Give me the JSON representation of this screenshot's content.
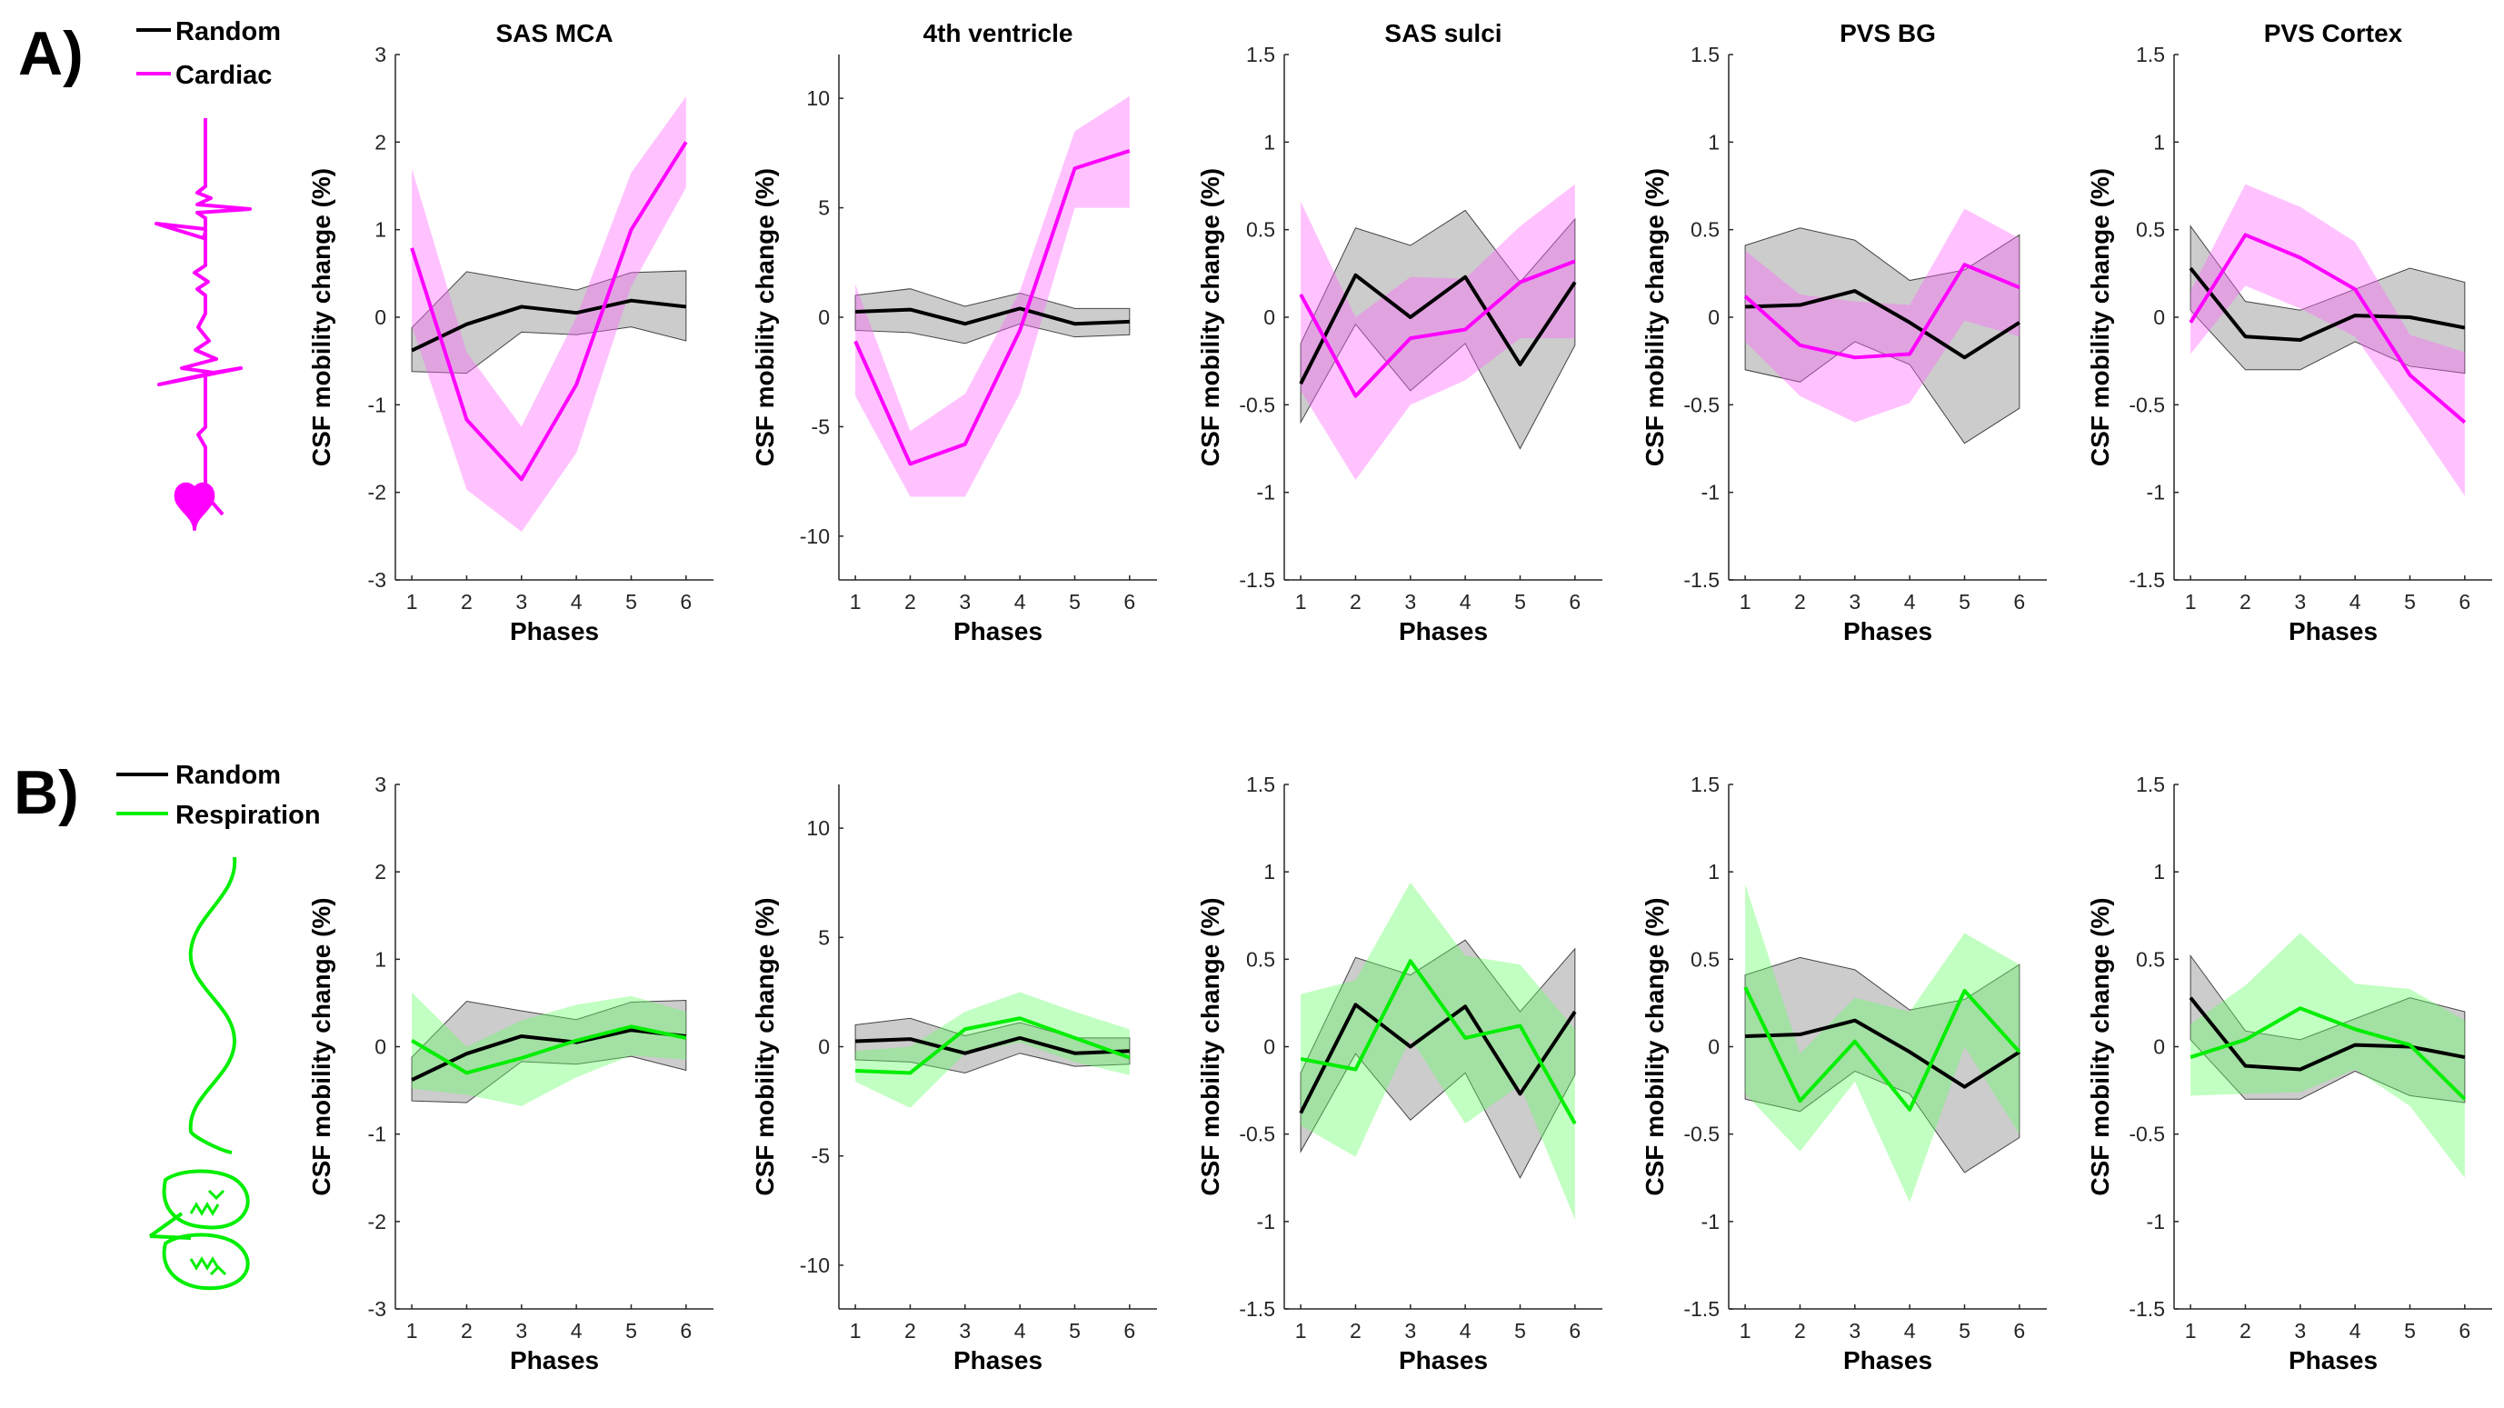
{
  "rows": [
    {
      "label": "A)",
      "legend": [
        {
          "name": "Random",
          "color": "#000000"
        },
        {
          "name": "Cardiac",
          "color": "#ff00ff"
        }
      ],
      "icon": "heartbeat-ecg-icon"
    },
    {
      "label": "B)",
      "legend": [
        {
          "name": "Random",
          "color": "#000000"
        },
        {
          "name": "Respiration",
          "color": "#00ee00"
        }
      ],
      "icon": "lungs-respiration-icon"
    }
  ],
  "chart_data": [
    {
      "type": "line",
      "row": 0,
      "title": "SAS MCA",
      "xlabel": "Phases",
      "ylabel": "CSF mobility change (%)",
      "x": [
        1,
        2,
        3,
        4,
        5,
        6
      ],
      "xlim": [
        0.7,
        6.5
      ],
      "ylim": [
        -3,
        3
      ],
      "yticks": [
        -3,
        -2,
        -1,
        0,
        1,
        2,
        3
      ],
      "series": [
        {
          "name": "Random",
          "color": "#000000",
          "values": [
            -0.38,
            -0.08,
            0.12,
            0.05,
            0.19,
            0.12
          ],
          "upper": [
            -0.12,
            0.52,
            0.41,
            0.31,
            0.51,
            0.53
          ],
          "lower": [
            -0.62,
            -0.64,
            -0.17,
            -0.2,
            -0.11,
            -0.27
          ]
        },
        {
          "name": "Cardiac",
          "color": "#ff00ff",
          "values": [
            0.79,
            -1.17,
            -1.85,
            -0.77,
            1.0,
            2.0
          ],
          "upper": [
            1.7,
            -0.4,
            -1.25,
            0.0,
            1.65,
            2.52
          ],
          "lower": [
            -0.1,
            -1.97,
            -2.45,
            -1.55,
            0.35,
            1.48
          ]
        }
      ]
    },
    {
      "type": "line",
      "row": 0,
      "title": "4th ventricle",
      "xlabel": "Phases",
      "ylabel": "CSF mobility change (%)",
      "x": [
        1,
        2,
        3,
        4,
        5,
        6
      ],
      "xlim": [
        0.7,
        6.5
      ],
      "ylim": [
        -12,
        12
      ],
      "yticks": [
        -10,
        -5,
        0,
        5,
        10
      ],
      "series": [
        {
          "name": "Random",
          "color": "#000000",
          "values": [
            0.25,
            0.35,
            -0.3,
            0.4,
            -0.3,
            -0.2
          ],
          "upper": [
            1.0,
            1.3,
            0.5,
            1.1,
            0.4,
            0.4
          ],
          "lower": [
            -0.6,
            -0.7,
            -1.2,
            -0.3,
            -0.9,
            -0.8
          ]
        },
        {
          "name": "Cardiac",
          "color": "#ff00ff",
          "values": [
            -1.1,
            -6.7,
            -5.8,
            -0.6,
            6.8,
            7.6
          ],
          "upper": [
            1.5,
            -5.2,
            -3.5,
            1.2,
            8.5,
            10.1
          ],
          "lower": [
            -3.6,
            -8.2,
            -8.2,
            -3.5,
            5.0,
            5.0
          ]
        }
      ]
    },
    {
      "type": "line",
      "row": 0,
      "title": "SAS sulci",
      "xlabel": "Phases",
      "ylabel": "CSF mobility change (%)",
      "x": [
        1,
        2,
        3,
        4,
        5,
        6
      ],
      "xlim": [
        0.7,
        6.5
      ],
      "ylim": [
        -1.5,
        1.5
      ],
      "yticks": [
        -1.5,
        -1,
        -0.5,
        0,
        0.5,
        1,
        1.5
      ],
      "series": [
        {
          "name": "Random",
          "color": "#000000",
          "values": [
            -0.38,
            0.24,
            0.0,
            0.23,
            -0.27,
            0.2
          ],
          "upper": [
            -0.15,
            0.51,
            0.41,
            0.61,
            0.2,
            0.56
          ],
          "lower": [
            -0.6,
            -0.04,
            -0.42,
            -0.15,
            -0.75,
            -0.16
          ]
        },
        {
          "name": "Cardiac",
          "color": "#ff00ff",
          "values": [
            0.13,
            -0.45,
            -0.12,
            -0.07,
            0.2,
            0.32
          ],
          "upper": [
            0.66,
            0.0,
            0.23,
            0.22,
            0.52,
            0.76
          ],
          "lower": [
            -0.42,
            -0.93,
            -0.5,
            -0.36,
            -0.12,
            -0.12
          ]
        }
      ]
    },
    {
      "type": "line",
      "row": 0,
      "title": "PVS BG",
      "xlabel": "Phases",
      "ylabel": "CSF mobility change (%)",
      "x": [
        1,
        2,
        3,
        4,
        5,
        6
      ],
      "xlim": [
        0.7,
        6.5
      ],
      "ylim": [
        -1.5,
        1.5
      ],
      "yticks": [
        -1.5,
        -1,
        -0.5,
        0,
        0.5,
        1,
        1.5
      ],
      "series": [
        {
          "name": "Random",
          "color": "#000000",
          "values": [
            0.06,
            0.07,
            0.15,
            -0.03,
            -0.23,
            -0.03
          ],
          "upper": [
            0.41,
            0.51,
            0.44,
            0.21,
            0.27,
            0.47
          ],
          "lower": [
            -0.3,
            -0.37,
            -0.14,
            -0.27,
            -0.72,
            -0.52
          ]
        },
        {
          "name": "Cardiac",
          "color": "#ff00ff",
          "values": [
            0.12,
            -0.16,
            -0.23,
            -0.21,
            0.3,
            0.17
          ],
          "upper": [
            0.38,
            0.13,
            0.09,
            0.07,
            0.62,
            0.45
          ],
          "lower": [
            -0.14,
            -0.45,
            -0.6,
            -0.49,
            -0.02,
            -0.11
          ]
        }
      ]
    },
    {
      "type": "line",
      "row": 0,
      "title": "PVS Cortex",
      "xlabel": "Phases",
      "ylabel": "CSF mobility change (%)",
      "x": [
        1,
        2,
        3,
        4,
        5,
        6
      ],
      "xlim": [
        0.7,
        6.5
      ],
      "ylim": [
        -1.5,
        1.5
      ],
      "yticks": [
        -1.5,
        -1,
        -0.5,
        0,
        0.5,
        1,
        1.5
      ],
      "series": [
        {
          "name": "Random",
          "color": "#000000",
          "values": [
            0.28,
            -0.11,
            -0.13,
            0.01,
            0.0,
            -0.06
          ],
          "upper": [
            0.52,
            0.09,
            0.04,
            0.16,
            0.28,
            0.2
          ],
          "lower": [
            0.04,
            -0.3,
            -0.3,
            -0.14,
            -0.28,
            -0.32
          ]
        },
        {
          "name": "Cardiac",
          "color": "#ff00ff",
          "values": [
            -0.03,
            0.47,
            0.34,
            0.16,
            -0.33,
            -0.6
          ],
          "upper": [
            0.15,
            0.76,
            0.63,
            0.43,
            -0.1,
            -0.2
          ],
          "lower": [
            -0.21,
            0.18,
            0.05,
            -0.11,
            -0.56,
            -1.02
          ]
        }
      ]
    },
    {
      "type": "line",
      "row": 1,
      "title": "",
      "xlabel": "Phases",
      "ylabel": "CSF mobility change (%)",
      "x": [
        1,
        2,
        3,
        4,
        5,
        6
      ],
      "xlim": [
        0.7,
        6.5
      ],
      "ylim": [
        -3,
        3
      ],
      "yticks": [
        -3,
        -2,
        -1,
        0,
        1,
        2,
        3
      ],
      "series": [
        {
          "name": "Random",
          "color": "#000000",
          "values": [
            -0.38,
            -0.08,
            0.12,
            0.05,
            0.19,
            0.12
          ],
          "upper": [
            -0.12,
            0.52,
            0.41,
            0.31,
            0.51,
            0.53
          ],
          "lower": [
            -0.62,
            -0.64,
            -0.17,
            -0.2,
            -0.11,
            -0.27
          ]
        },
        {
          "name": "Respiration",
          "color": "#00ee00",
          "values": [
            0.07,
            -0.3,
            -0.13,
            0.07,
            0.23,
            0.1
          ],
          "upper": [
            0.62,
            0.0,
            0.3,
            0.48,
            0.58,
            0.4
          ],
          "lower": [
            -0.48,
            -0.55,
            -0.68,
            -0.35,
            -0.1,
            -0.15
          ]
        }
      ]
    },
    {
      "type": "line",
      "row": 1,
      "title": "",
      "xlabel": "Phases",
      "ylabel": "CSF mobility change (%)",
      "x": [
        1,
        2,
        3,
        4,
        5,
        6
      ],
      "xlim": [
        0.7,
        6.5
      ],
      "ylim": [
        -12,
        12
      ],
      "yticks": [
        -10,
        -5,
        0,
        5,
        10
      ],
      "series": [
        {
          "name": "Random",
          "color": "#000000",
          "values": [
            0.25,
            0.35,
            -0.3,
            0.4,
            -0.3,
            -0.2
          ],
          "upper": [
            1.0,
            1.3,
            0.5,
            1.1,
            0.4,
            0.4
          ],
          "lower": [
            -0.6,
            -0.7,
            -1.2,
            -0.3,
            -0.9,
            -0.8
          ]
        },
        {
          "name": "Respiration",
          "color": "#00ee00",
          "values": [
            -1.1,
            -1.2,
            0.8,
            1.3,
            0.4,
            -0.5
          ],
          "upper": [
            -0.2,
            0.0,
            1.6,
            2.5,
            1.6,
            0.8
          ],
          "lower": [
            -1.6,
            -2.8,
            -0.3,
            0.2,
            -0.7,
            -1.3
          ]
        }
      ]
    },
    {
      "type": "line",
      "row": 1,
      "title": "",
      "xlabel": "Phases",
      "ylabel": "CSF mobility change (%)",
      "x": [
        1,
        2,
        3,
        4,
        5,
        6
      ],
      "xlim": [
        0.7,
        6.5
      ],
      "ylim": [
        -1.5,
        1.5
      ],
      "yticks": [
        -1.5,
        -1,
        -0.5,
        0,
        0.5,
        1,
        1.5
      ],
      "series": [
        {
          "name": "Random",
          "color": "#000000",
          "values": [
            -0.38,
            0.24,
            0.0,
            0.23,
            -0.27,
            0.2
          ],
          "upper": [
            -0.15,
            0.51,
            0.41,
            0.61,
            0.2,
            0.56
          ],
          "lower": [
            -0.6,
            -0.04,
            -0.42,
            -0.15,
            -0.75,
            -0.16
          ]
        },
        {
          "name": "Respiration",
          "color": "#00ee00",
          "values": [
            -0.07,
            -0.13,
            0.49,
            0.05,
            0.12,
            -0.44
          ],
          "upper": [
            0.3,
            0.38,
            0.94,
            0.52,
            0.47,
            0.1
          ],
          "lower": [
            -0.45,
            -0.63,
            0.05,
            -0.44,
            -0.22,
            -0.99
          ]
        }
      ]
    },
    {
      "type": "line",
      "row": 1,
      "title": "",
      "xlabel": "Phases",
      "ylabel": "CSF mobility change (%)",
      "x": [
        1,
        2,
        3,
        4,
        5,
        6
      ],
      "xlim": [
        0.7,
        6.5
      ],
      "ylim": [
        -1.5,
        1.5
      ],
      "yticks": [
        -1.5,
        -1,
        -0.5,
        0,
        0.5,
        1,
        1.5
      ],
      "series": [
        {
          "name": "Random",
          "color": "#000000",
          "values": [
            0.06,
            0.07,
            0.15,
            -0.03,
            -0.23,
            -0.03
          ],
          "upper": [
            0.41,
            0.51,
            0.44,
            0.21,
            0.27,
            0.47
          ],
          "lower": [
            -0.3,
            -0.37,
            -0.14,
            -0.27,
            -0.72,
            -0.52
          ]
        },
        {
          "name": "Respiration",
          "color": "#00ee00",
          "values": [
            0.34,
            -0.31,
            0.03,
            -0.36,
            0.32,
            -0.03
          ],
          "upper": [
            0.93,
            -0.04,
            0.28,
            0.2,
            0.65,
            0.47
          ],
          "lower": [
            -0.27,
            -0.6,
            -0.2,
            -0.89,
            0.0,
            -0.5
          ]
        }
      ]
    },
    {
      "type": "line",
      "row": 1,
      "title": "",
      "xlabel": "Phases",
      "ylabel": "CSF mobility change (%)",
      "x": [
        1,
        2,
        3,
        4,
        5,
        6
      ],
      "xlim": [
        0.7,
        6.5
      ],
      "ylim": [
        -1.5,
        1.5
      ],
      "yticks": [
        -1.5,
        -1,
        -0.5,
        0,
        0.5,
        1,
        1.5
      ],
      "series": [
        {
          "name": "Random",
          "color": "#000000",
          "values": [
            0.28,
            -0.11,
            -0.13,
            0.01,
            0.0,
            -0.06
          ],
          "upper": [
            0.52,
            0.09,
            0.04,
            0.16,
            0.28,
            0.2
          ],
          "lower": [
            0.04,
            -0.3,
            -0.3,
            -0.14,
            -0.28,
            -0.32
          ]
        },
        {
          "name": "Respiration",
          "color": "#00ee00",
          "values": [
            -0.06,
            0.04,
            0.22,
            0.1,
            0.01,
            -0.3
          ],
          "upper": [
            0.13,
            0.35,
            0.65,
            0.36,
            0.33,
            0.15
          ],
          "lower": [
            -0.28,
            -0.27,
            -0.26,
            -0.13,
            -0.34,
            -0.75
          ]
        }
      ]
    }
  ]
}
